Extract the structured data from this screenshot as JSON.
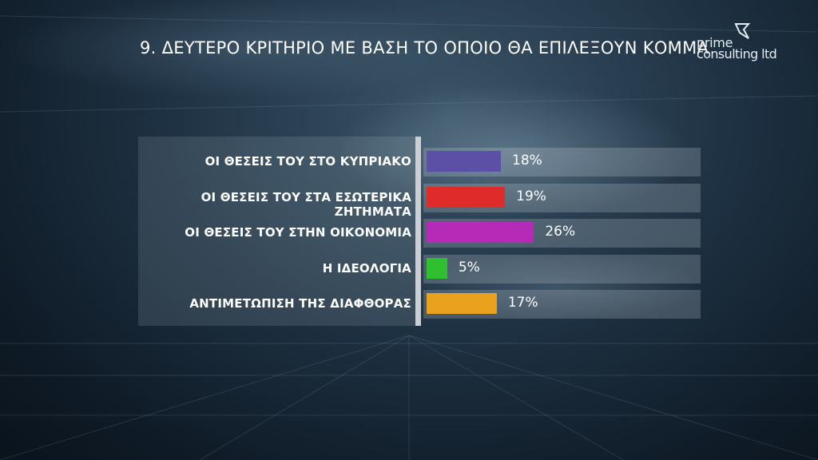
{
  "title": "9. ΔΕΥΤΕΡΟ ΚΡΙΤΗΡΙΟ ΜΕ ΒΑΣΗ ΤΟ ΟΠΟΙΟ ΘΑ ΕΠΙΛΕΞΟΥΝ ΚΟΜΜΑ",
  "logo": {
    "line1": "prime",
    "line2": "consulting ltd",
    "icon": "prime-logo-mark-icon"
  },
  "chart_data": {
    "type": "bar",
    "orientation": "horizontal",
    "title": "9. ΔΕΥΤΕΡΟ ΚΡΙΤΗΡΙΟ ΜΕ ΒΑΣΗ ΤΟ ΟΠΟΙΟ ΘΑ ΕΠΙΛΕΞΟΥΝ ΚΟΜΜΑ",
    "categories": [
      "ΟΙ ΘΕΣΕΙΣ ΤΟΥ ΣΤΟ ΚΥΠΡΙΑΚΟ",
      "ΟΙ ΘΕΣΕΙΣ ΤΟΥ ΣΤΑ ΕΣΩΤΕΡΙΚΑ ΖΗΤΗΜΑΤΑ",
      "ΟΙ ΘΕΣΕΙΣ ΤΟΥ ΣΤΗΝ ΟΙΚΟΝΟΜΙΑ",
      "Η ΙΔΕΟΛΟΓΙΑ",
      "ΑΝΤΙΜΕΤΩΠΙΣΗ ΤΗΣ ΔΙΑΦΘΟΡΑΣ"
    ],
    "values": [
      18,
      19,
      26,
      5,
      17
    ],
    "value_labels": [
      "18%",
      "19%",
      "26%",
      "5%",
      "17%"
    ],
    "colors": [
      "#5b4fa6",
      "#e02b2b",
      "#b52bb8",
      "#2fbf2f",
      "#e9a11e"
    ],
    "unit": "%",
    "xlim": [
      0,
      65
    ],
    "grid": false,
    "legend": "none"
  }
}
